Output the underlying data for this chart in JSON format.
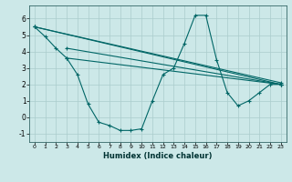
{
  "title": "",
  "xlabel": "Humidex (Indice chaleur)",
  "background_color": "#cce8e8",
  "line_color": "#006666",
  "grid_color": "#aacccc",
  "xlim": [
    -0.5,
    23.5
  ],
  "ylim": [
    -1.5,
    6.8
  ],
  "xticks": [
    0,
    1,
    2,
    3,
    4,
    5,
    6,
    7,
    8,
    9,
    10,
    11,
    12,
    13,
    14,
    15,
    16,
    17,
    18,
    19,
    20,
    21,
    22,
    23
  ],
  "yticks": [
    -1,
    0,
    1,
    2,
    3,
    4,
    5,
    6
  ],
  "series": [
    [
      0,
      5.5
    ],
    [
      1,
      4.9
    ],
    [
      2,
      4.2
    ],
    [
      3,
      3.6
    ],
    [
      4,
      2.6
    ],
    [
      5,
      0.8
    ],
    [
      6,
      -0.3
    ],
    [
      7,
      -0.5
    ],
    [
      8,
      -0.8
    ],
    [
      9,
      -0.8
    ],
    [
      10,
      -0.7
    ],
    [
      11,
      1.0
    ],
    [
      12,
      2.6
    ],
    [
      13,
      3.0
    ],
    [
      14,
      4.5
    ],
    [
      15,
      6.2
    ],
    [
      16,
      6.2
    ],
    [
      17,
      3.5
    ],
    [
      18,
      1.5
    ],
    [
      19,
      0.7
    ],
    [
      20,
      1.0
    ],
    [
      21,
      1.5
    ],
    [
      22,
      2.0
    ],
    [
      23,
      2.0
    ]
  ],
  "line2": [
    [
      0,
      5.5
    ],
    [
      23,
      2.0
    ]
  ],
  "line3": [
    [
      0,
      5.5
    ],
    [
      23,
      2.1
    ]
  ],
  "line4": [
    [
      3,
      4.2
    ],
    [
      23,
      2.0
    ]
  ],
  "line5": [
    [
      3,
      3.6
    ],
    [
      23,
      2.0
    ]
  ]
}
